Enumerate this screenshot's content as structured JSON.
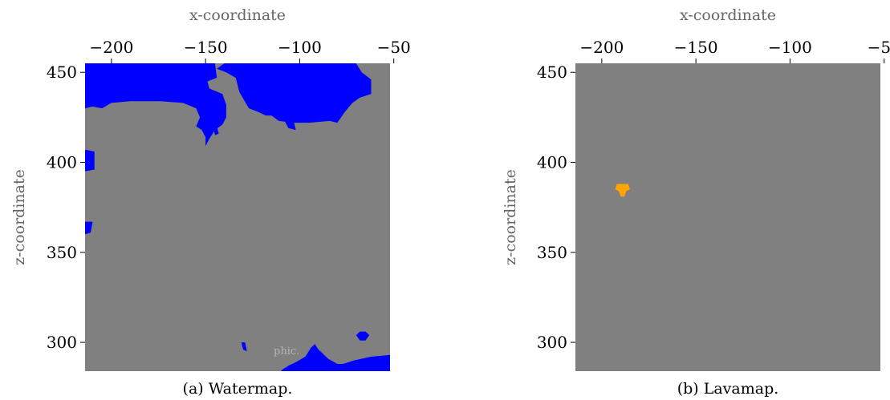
{
  "chart_data": [
    {
      "id": "a",
      "type": "heatmap",
      "caption": "(a) Watermap.",
      "xlabel": "x-coordinate",
      "ylabel": "z-coordinate",
      "x_ticks": [
        -200,
        -150,
        -100,
        -50
      ],
      "x_tick_labels": [
        "−200",
        "−150",
        "−100",
        "−50"
      ],
      "y_ticks": [
        450,
        400,
        350,
        300
      ],
      "y_tick_labels": [
        "450",
        "400",
        "350",
        "300"
      ],
      "xlim": [
        -214,
        -52
      ],
      "ylim": [
        284,
        455
      ],
      "xaxis_position": "top",
      "grid": false,
      "colors": {
        "background": "#808080",
        "feature": "#0000ff"
      },
      "feature_name": "water",
      "faint_text": "phic.",
      "regions": [
        {
          "name": "water-north",
          "points": [
            [
              -214,
              455
            ],
            [
              -145,
              455
            ],
            [
              -144,
              447
            ],
            [
              -149,
              445
            ],
            [
              -148,
              441
            ],
            [
              -141,
              438
            ],
            [
              -139,
              432
            ],
            [
              -139,
              425
            ],
            [
              -141,
              421
            ],
            [
              -145,
              418
            ],
            [
              -148,
              413
            ],
            [
              -150,
              409
            ],
            [
              -150,
              414
            ],
            [
              -152,
              418
            ],
            [
              -155,
              420
            ],
            [
              -153,
              425
            ],
            [
              -155,
              430
            ],
            [
              -162,
              433
            ],
            [
              -174,
              434
            ],
            [
              -190,
              434
            ],
            [
              -200,
              433
            ],
            [
              -205,
              430
            ],
            [
              -210,
              431
            ],
            [
              -214,
              430
            ]
          ]
        },
        {
          "name": "water-northeast",
          "points": [
            [
              -125,
              455
            ],
            [
              -70,
              455
            ],
            [
              -67,
              450
            ],
            [
              -62,
              446
            ],
            [
              -62,
              438
            ],
            [
              -68,
              436
            ],
            [
              -72,
              433
            ],
            [
              -76,
              428
            ],
            [
              -80,
              422
            ],
            [
              -84,
              423
            ],
            [
              -95,
              422
            ],
            [
              -103,
              422
            ],
            [
              -111,
              423
            ],
            [
              -115,
              426
            ],
            [
              -118,
              426
            ],
            [
              -122,
              428
            ],
            [
              -127,
              430
            ],
            [
              -132,
              439
            ],
            [
              -134,
              447
            ],
            [
              -139,
              450
            ],
            [
              -144,
              452
            ],
            [
              -140,
              455
            ]
          ]
        },
        {
          "name": "water-east-bay",
          "points": [
            [
              -52,
              293
            ],
            [
              -62,
              292
            ],
            [
              -71,
              290
            ],
            [
              -77,
              288
            ],
            [
              -80,
              288
            ],
            [
              -85,
              291
            ],
            [
              -88,
              294
            ],
            [
              -90,
              296
            ],
            [
              -92,
              299
            ],
            [
              -94,
              297
            ],
            [
              -97,
              292
            ],
            [
              -102,
              289
            ],
            [
              -106,
              287
            ],
            [
              -109,
              285
            ],
            [
              -110,
              284
            ],
            [
              -52,
              284
            ]
          ]
        },
        {
          "name": "water-west-edge-1",
          "points": [
            [
              -214,
              407
            ],
            [
              -209,
              406
            ],
            [
              -209,
              396
            ],
            [
              -214,
              395
            ]
          ]
        },
        {
          "name": "water-west-edge-2",
          "points": [
            [
              -214,
              367
            ],
            [
              -210,
              367
            ],
            [
              -211,
              361
            ],
            [
              -214,
              360
            ]
          ]
        },
        {
          "name": "water-pond",
          "points": [
            [
              -68,
              306
            ],
            [
              -65,
              306
            ],
            [
              -63,
              304
            ],
            [
              -65,
              301
            ],
            [
              -68,
              301
            ],
            [
              -70,
              304
            ]
          ]
        },
        {
          "name": "water-speck-1",
          "points": [
            [
              -131,
              300
            ],
            [
              -129,
              300
            ],
            [
              -128,
              295
            ],
            [
              -130,
              296
            ]
          ]
        },
        {
          "name": "water-speck-2",
          "points": [
            [
              -146,
              420
            ],
            [
              -144,
              420
            ],
            [
              -143,
              416
            ],
            [
              -145,
              415
            ]
          ]
        },
        {
          "name": "water-speck-3",
          "points": [
            [
              -108,
              423
            ],
            [
              -103,
              422
            ],
            [
              -102,
              418
            ],
            [
              -106,
              419
            ]
          ]
        }
      ]
    },
    {
      "id": "b",
      "type": "heatmap",
      "caption": "(b) Lavamap.",
      "xlabel": "x-coordinate",
      "ylabel": "z-coordinate",
      "x_ticks": [
        -200,
        -150,
        -100,
        -50
      ],
      "x_tick_labels": [
        "−200",
        "−150",
        "−100",
        "−50"
      ],
      "y_ticks": [
        450,
        400,
        350,
        300
      ],
      "y_tick_labels": [
        "450",
        "400",
        "350",
        "300"
      ],
      "xlim": [
        -214,
        -52
      ],
      "ylim": [
        284,
        455
      ],
      "xaxis_position": "top",
      "grid": false,
      "colors": {
        "background": "#808080",
        "feature": "#ffa500"
      },
      "feature_name": "lava",
      "regions": [
        {
          "name": "lava-patch",
          "points": [
            [
              -192,
              388
            ],
            [
              -186,
              388
            ],
            [
              -185,
              385
            ],
            [
              -187,
              384
            ],
            [
              -188,
              381
            ],
            [
              -190,
              381
            ],
            [
              -191,
              384
            ],
            [
              -193,
              385
            ]
          ]
        }
      ]
    }
  ]
}
